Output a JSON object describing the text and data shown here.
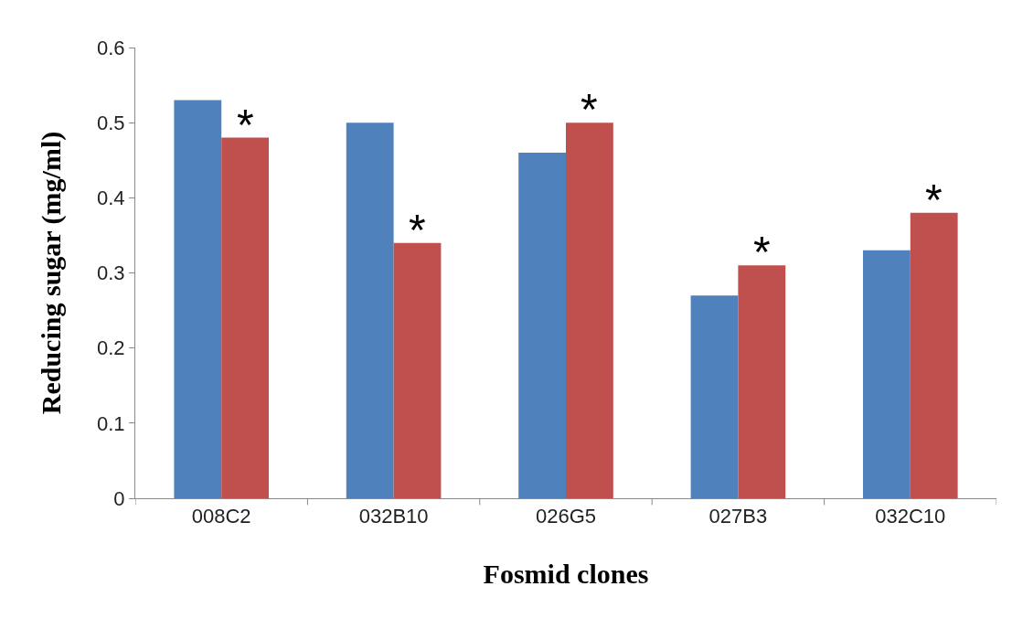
{
  "chart_data": {
    "type": "bar",
    "xlabel": "Fosmid clones",
    "ylabel": "Reducing sugar (mg/ml)",
    "categories": [
      "008C2",
      "032B10",
      "026G5",
      "027B3",
      "032C10"
    ],
    "series": [
      {
        "color": "#4f81bd",
        "values": [
          0.53,
          0.5,
          0.46,
          0.27,
          0.33
        ]
      },
      {
        "color": "#c0504d",
        "values": [
          0.48,
          0.34,
          0.5,
          0.31,
          0.38
        ]
      }
    ],
    "ylim": [
      0,
      0.6
    ],
    "yticks": [
      0,
      0.1,
      0.2,
      0.3,
      0.4,
      0.5,
      0.6
    ],
    "grid": false,
    "annotations": [
      {
        "text": "*",
        "x": "008C2",
        "y": 0.48
      },
      {
        "text": "*",
        "x": "032B10",
        "y": 0.34
      },
      {
        "text": "*",
        "x": "026G5",
        "y": 0.5
      },
      {
        "text": "*",
        "x": "027B3",
        "y": 0.31
      },
      {
        "text": "*",
        "x": "032C10",
        "y": 0.38
      }
    ]
  }
}
